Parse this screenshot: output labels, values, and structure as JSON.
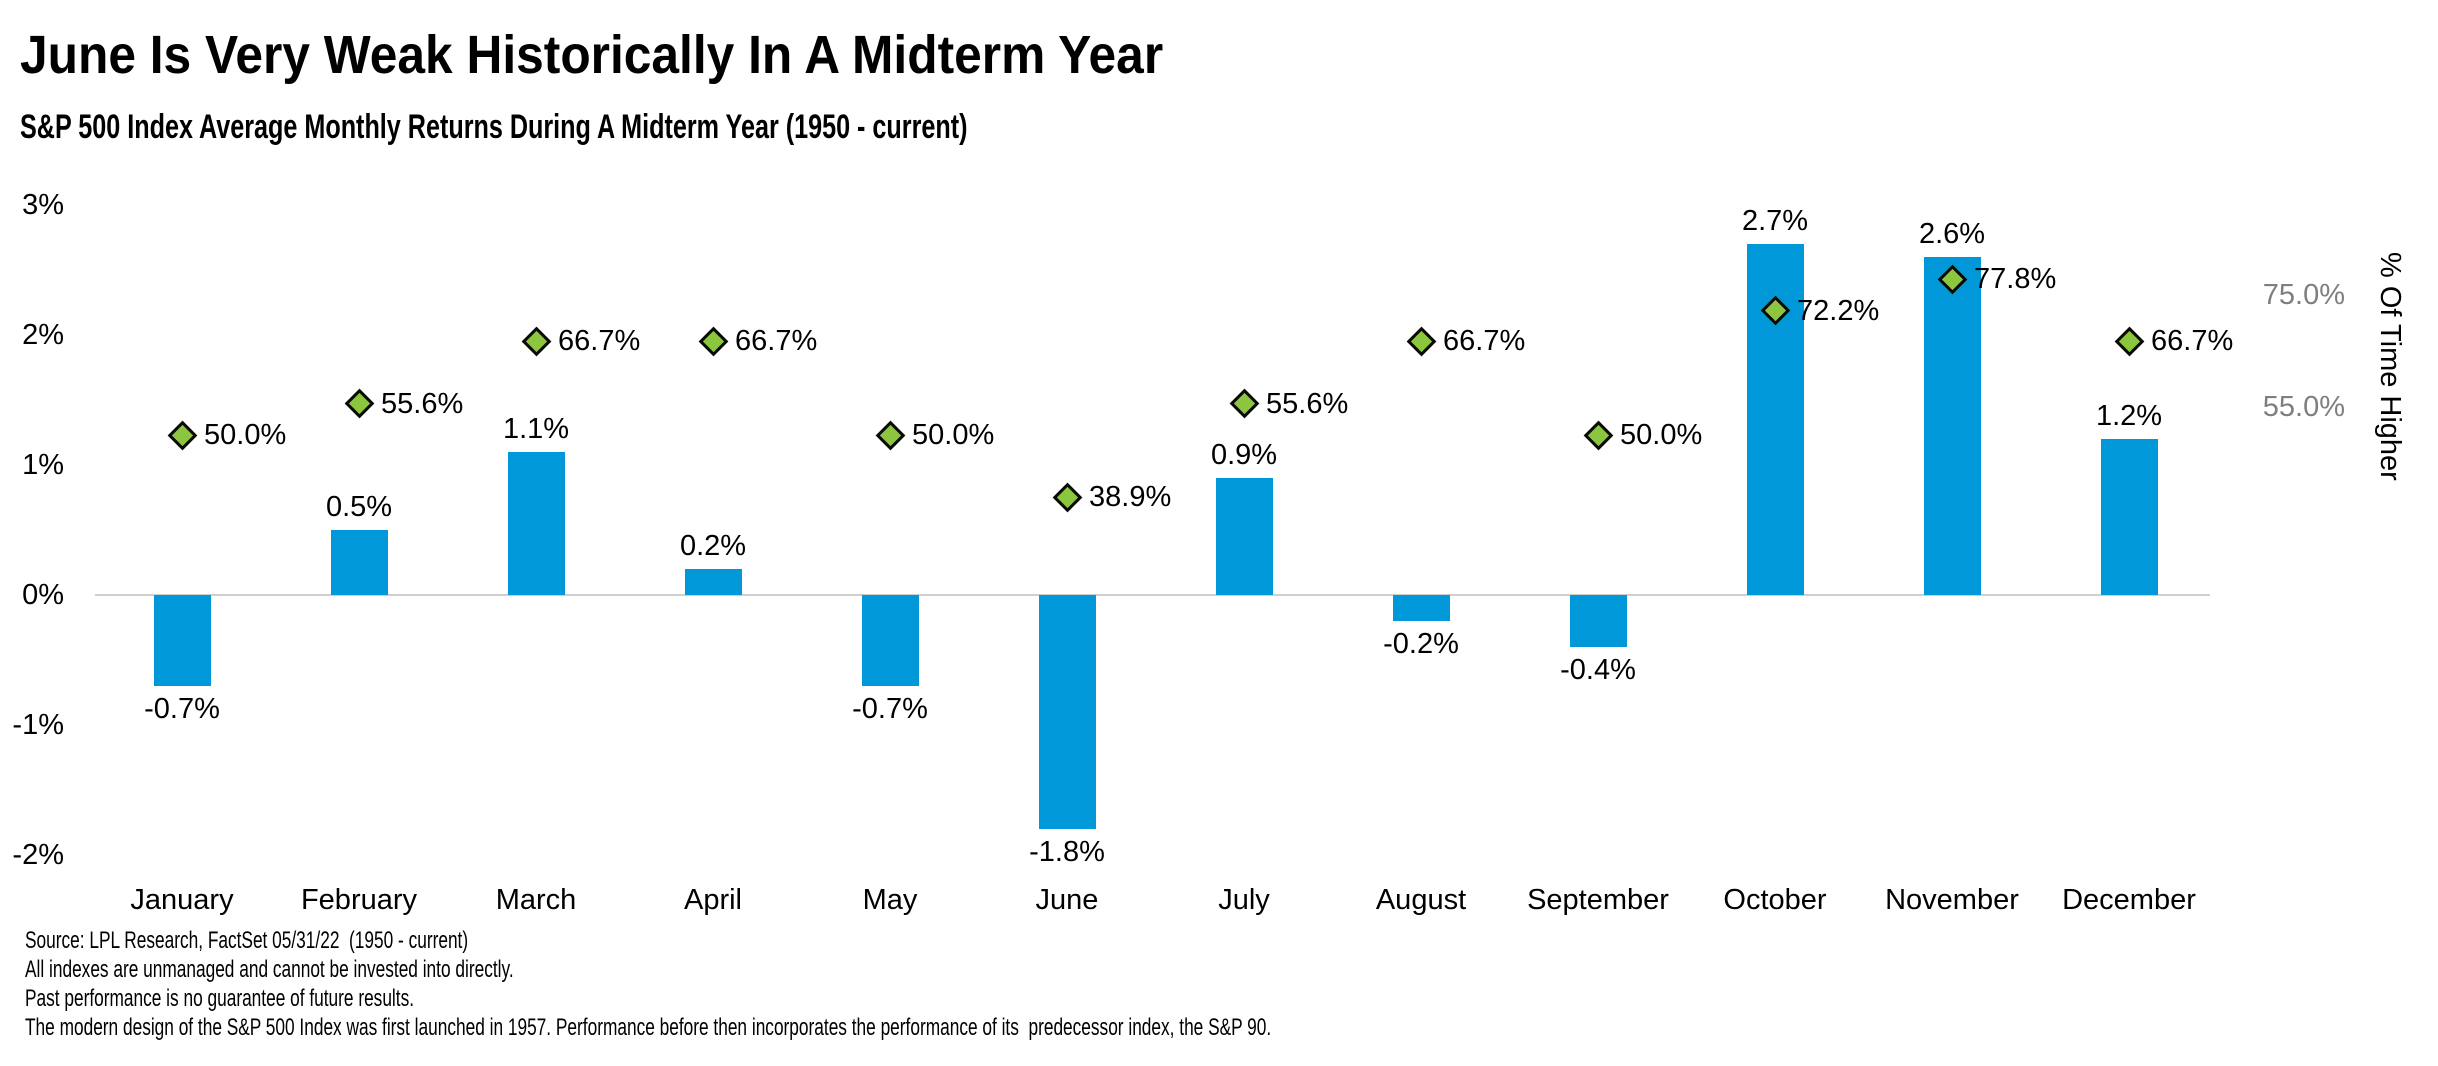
{
  "title": "June Is Very Weak Historically In A Midterm Year",
  "subtitle": "S&P 500 Index Average Monthly Returns During A Midterm Year (1950 - current)",
  "chart_data": {
    "type": "bar",
    "title": "June Is Very Weak Historically In A Midterm Year",
    "subtitle": "S&P 500 Index Average Monthly Returns During A Midterm Year (1950 - current)",
    "categories": [
      "January",
      "February",
      "March",
      "April",
      "May",
      "June",
      "July",
      "August",
      "September",
      "October",
      "November",
      "December"
    ],
    "series": [
      {
        "name": "Average Monthly Return",
        "type": "bar",
        "axis": "left",
        "color": "#0098D8",
        "values": [
          -0.7,
          0.5,
          1.1,
          0.2,
          -0.7,
          -1.8,
          0.9,
          -0.2,
          -0.4,
          2.7,
          2.6,
          1.2
        ],
        "labels": [
          "-0.7%",
          "0.5%",
          "1.1%",
          "0.2%",
          "-0.7%",
          "-1.8%",
          "0.9%",
          "-0.2%",
          "-0.4%",
          "2.7%",
          "2.6%",
          "1.2%"
        ]
      },
      {
        "name": "% Of Time Higher",
        "type": "scatter",
        "marker": "diamond",
        "axis": "right",
        "color": "#8CC63F",
        "marker_border": "#0a0a0a",
        "values": [
          50.0,
          55.6,
          66.7,
          66.7,
          50.0,
          38.9,
          55.6,
          66.7,
          50.0,
          72.2,
          77.8,
          66.7
        ],
        "labels": [
          "50.0%",
          "55.6%",
          "66.7%",
          "66.7%",
          "50.0%",
          "38.9%",
          "55.6%",
          "66.7%",
          "50.0%",
          "72.2%",
          "77.8%",
          "66.7%"
        ]
      }
    ],
    "left_axis": {
      "tick_labels": [
        "3%",
        "2%",
        "1%",
        "0%",
        "-1%",
        "-2%"
      ],
      "tick_values": [
        3,
        2,
        1,
        0,
        -1,
        -2
      ],
      "range": [
        -2.4,
        3.1
      ]
    },
    "right_axis": {
      "title": "% Of Time Higher",
      "tick_labels": [
        "75.0%",
        "55.0%"
      ],
      "tick_values": [
        75,
        55
      ],
      "text_color": "#7F7F7F"
    },
    "gridline": {
      "at_value": 0,
      "color": "#CFCFCF"
    },
    "legend": "none"
  },
  "footer": {
    "lines": [
      "Source: LPL Research, FactSet 05/31/22  (1950 - current)",
      "All indexes are unmanaged and cannot be invested into directly.",
      "Past performance is no guarantee of future results.",
      "The modern design of the S&P 500 Index was first launched in 1957. Performance before then incorporates the performance of its  predecessor index, the S&P 90."
    ]
  }
}
